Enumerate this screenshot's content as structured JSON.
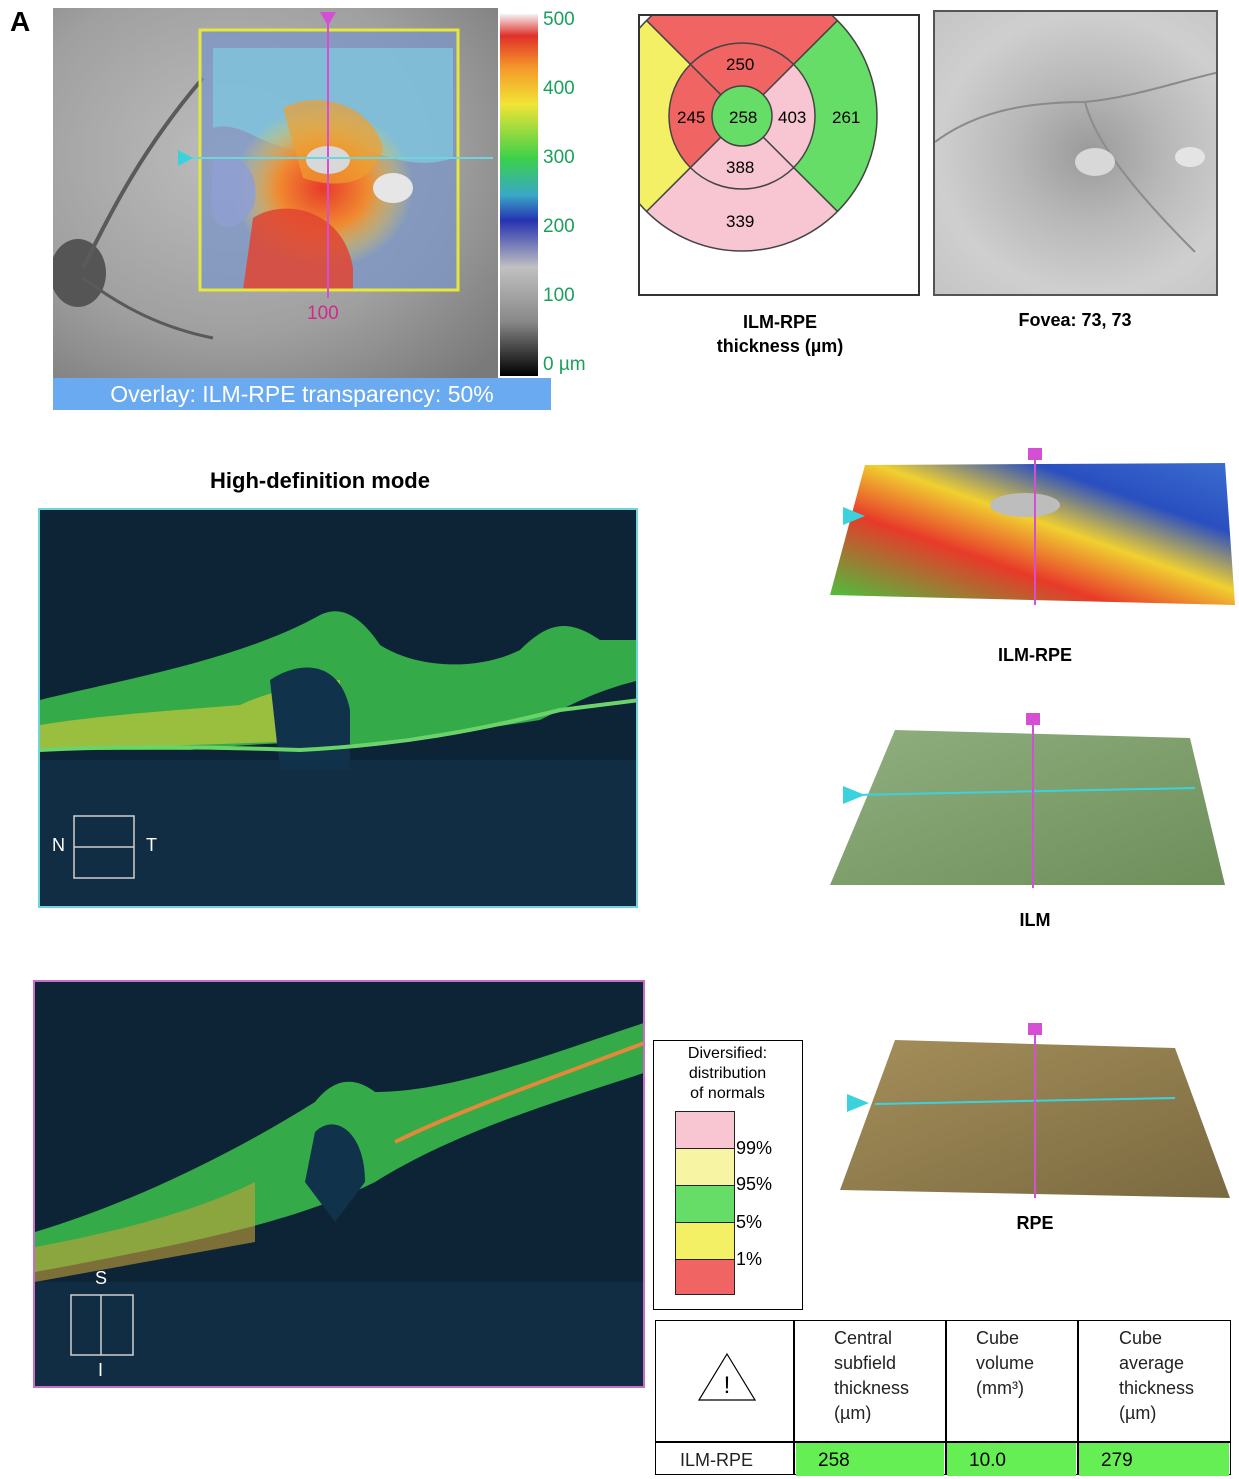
{
  "panel_label": "A",
  "fundus": {
    "scan_marker": "100",
    "overlay_caption": "Overlay: ILM-RPE transparency: 50%"
  },
  "colorbar": {
    "ticks": [
      "500",
      "400",
      "300",
      "200",
      "100",
      "0 µm"
    ]
  },
  "etdrs_grid": {
    "caption_line1": "ILM-RPE",
    "caption_line2": "thickness (µm)",
    "center": "258",
    "inner_superior": "250",
    "inner_temporal": "245",
    "inner_nasal": "403",
    "inner_inferior": "388",
    "outer_nasal": "261",
    "outer_inferior": "339",
    "colors": {
      "red": "#f06464",
      "pink": "#f7c6d2",
      "green": "#66dd66",
      "yellow": "#f4f066"
    }
  },
  "fovea": {
    "caption": "Fovea: 73, 73"
  },
  "hd_title": "High-definition mode",
  "bscan1": {
    "left_label": "N",
    "right_label": "T",
    "border_color": "#6fd4dd"
  },
  "bscan2": {
    "top_label": "S",
    "bottom_label": "I",
    "border_color": "#c86ec8"
  },
  "maps3d": {
    "ilm_rpe": "ILM-RPE",
    "ilm": "ILM",
    "rpe": "RPE"
  },
  "legend": {
    "title_lines": [
      "Diversified:",
      "distribution",
      "of normals"
    ],
    "percentiles": [
      "99%",
      "95%",
      "5%",
      "1%"
    ],
    "swatch_colors": [
      "#f7c6d2",
      "#f7f4a4",
      "#66dd66",
      "#f4f066",
      "#f06464"
    ]
  },
  "table": {
    "warning_icon": "warning-triangle-icon",
    "headers": [
      [
        "Central",
        "subfield",
        "thickness",
        "(µm)"
      ],
      [
        "Cube",
        "volume",
        "(mm³)"
      ],
      [
        "Cube",
        "average",
        "thickness",
        "(µm)"
      ]
    ],
    "row_label": "ILM-RPE",
    "values": [
      "258",
      "10.0",
      "279"
    ],
    "value_color": "#66ee55"
  }
}
